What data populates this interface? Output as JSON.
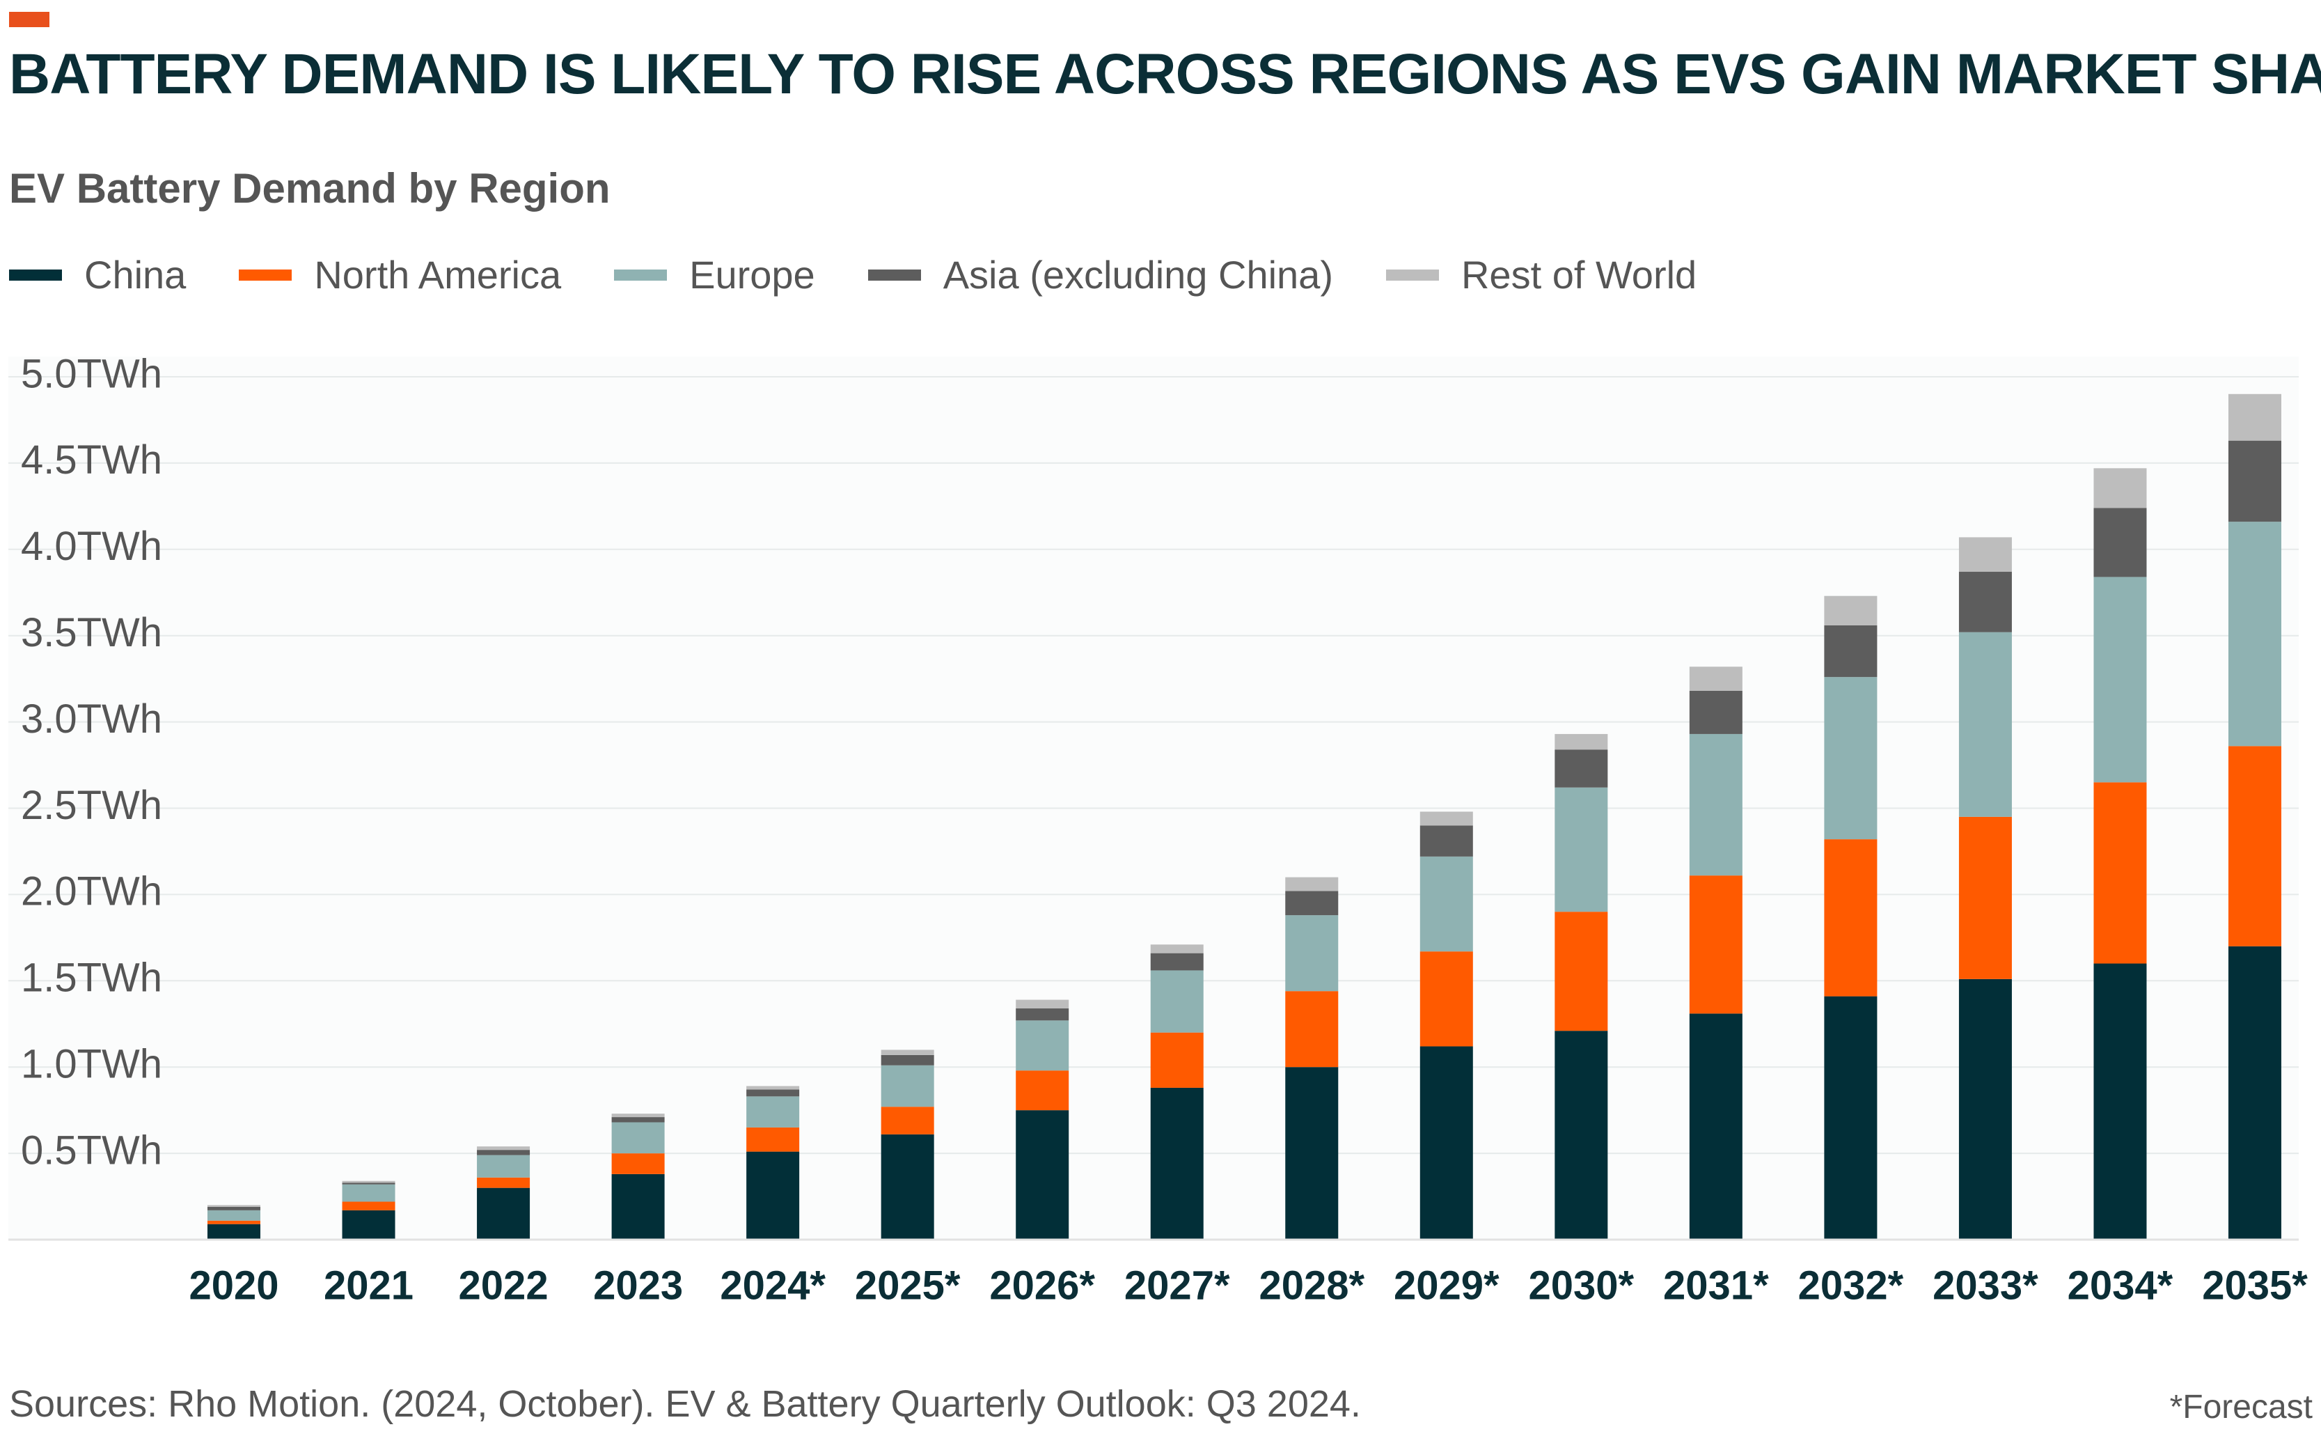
{
  "header": {
    "title": "BATTERY DEMAND IS LIKELY TO RISE ACROSS REGIONS AS EVS GAIN MARKET SHARE",
    "subtitle": "EV Battery Demand by Region"
  },
  "colors": {
    "accent": "#e8501c",
    "title": "#0b2e36",
    "text": "#555555"
  },
  "legend": [
    {
      "label": "China",
      "color": "#022f38"
    },
    {
      "label": "North America",
      "color": "#ff5a00"
    },
    {
      "label": "Europe",
      "color": "#8fb2b2"
    },
    {
      "label": "Asia (excluding China)",
      "color": "#5d5d5d"
    },
    {
      "label": "Rest of World",
      "color": "#bdbdbd"
    }
  ],
  "chart_data": {
    "type": "bar",
    "stacked": true,
    "title": "EV Battery Demand by Region",
    "categories": [
      "2020",
      "2021",
      "2022",
      "2023",
      "2024*",
      "2025*",
      "2026*",
      "2027*",
      "2028*",
      "2029*",
      "2030*",
      "2031*",
      "2032*",
      "2033*",
      "2034*",
      "2035*"
    ],
    "series": [
      {
        "name": "China",
        "color": "#022f38",
        "values": [
          0.09,
          0.17,
          0.3,
          0.38,
          0.51,
          0.61,
          0.75,
          0.88,
          1.0,
          1.12,
          1.21,
          1.31,
          1.41,
          1.51,
          1.6,
          1.7
        ]
      },
      {
        "name": "North America",
        "color": "#ff5a00",
        "values": [
          0.02,
          0.05,
          0.06,
          0.12,
          0.14,
          0.16,
          0.23,
          0.32,
          0.44,
          0.55,
          0.69,
          0.8,
          0.91,
          0.94,
          1.05,
          1.16
        ]
      },
      {
        "name": "Europe",
        "color": "#8fb2b2",
        "values": [
          0.06,
          0.1,
          0.13,
          0.18,
          0.18,
          0.24,
          0.29,
          0.36,
          0.44,
          0.55,
          0.72,
          0.82,
          0.94,
          1.07,
          1.19,
          1.3
        ]
      },
      {
        "name": "Asia (excluding China)",
        "color": "#5d5d5d",
        "values": [
          0.02,
          0.01,
          0.03,
          0.03,
          0.04,
          0.06,
          0.07,
          0.1,
          0.14,
          0.18,
          0.22,
          0.25,
          0.3,
          0.35,
          0.4,
          0.47
        ]
      },
      {
        "name": "Rest of World",
        "color": "#bdbdbd",
        "values": [
          0.01,
          0.01,
          0.02,
          0.02,
          0.02,
          0.03,
          0.05,
          0.05,
          0.08,
          0.08,
          0.09,
          0.14,
          0.17,
          0.2,
          0.23,
          0.27
        ]
      }
    ],
    "y_ticks": [
      "0.5TWh",
      "1.0TWh",
      "1.5TWh",
      "2.0TWh",
      "2.5TWh",
      "3.0TWh",
      "3.5TWh",
      "4.0TWh",
      "4.5TWh",
      "5.0TWh"
    ],
    "ylim": [
      0,
      5.0
    ],
    "y_unit": "TWh",
    "grid": true,
    "legend_position": "top-left"
  },
  "footer": {
    "source": "Sources: Rho Motion. (2024, October). EV & Battery Quarterly Outlook: Q3 2024.",
    "footnote": "*Forecast"
  }
}
